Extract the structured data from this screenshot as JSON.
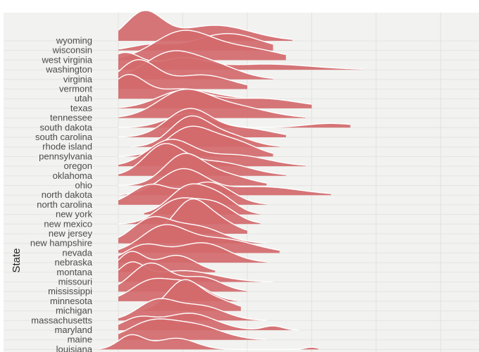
{
  "chart_data": {
    "type": "ridgeline",
    "title": "",
    "xlabel": "",
    "ylabel": "State",
    "grid": true,
    "colors": {
      "fill": "#d26a6c",
      "outline": "#ffffff",
      "panel": "#f2f2f0",
      "grid": "#e4e4e2"
    },
    "x_grid": [
      0,
      1,
      2,
      3,
      4,
      5
    ],
    "x_range": [
      -0.3,
      5.5
    ],
    "categories": [
      "wyoming",
      "wisconsin",
      "west virginia",
      "washington",
      "virginia",
      "vermont",
      "utah",
      "texas",
      "tennessee",
      "south dakota",
      "south carolina",
      "rhode island",
      "pennsylvania",
      "oregon",
      "oklahoma",
      "ohio",
      "north dakota",
      "north carolina",
      "new york",
      "new mexico",
      "new jersey",
      "new hampshire",
      "nevada",
      "nebraska",
      "montana",
      "missouri",
      "mississippi",
      "minnesota",
      "michigan",
      "massachusetts",
      "maryland",
      "maine",
      "louisiana"
    ],
    "series": [
      {
        "name": "wyoming",
        "peaks": [
          [
            0.4,
            0.28,
            1.0
          ],
          [
            1.5,
            0.55,
            0.55
          ]
        ],
        "range": [
          0,
          2.7
        ]
      },
      {
        "name": "wisconsin",
        "peaks": [
          [
            0.5,
            0.3,
            0.2
          ],
          [
            1.7,
            0.5,
            0.6
          ]
        ],
        "range": [
          0,
          2.4
        ]
      },
      {
        "name": "west virginia",
        "peaks": [
          [
            1.0,
            0.45,
            1.0
          ],
          [
            2.0,
            0.5,
            0.4
          ]
        ],
        "range": [
          0,
          2.6
        ]
      },
      {
        "name": "washington",
        "peaks": [
          [
            0.1,
            0.25,
            0.6
          ],
          [
            1.0,
            0.35,
            0.4
          ],
          [
            2.3,
            0.7,
            0.2
          ]
        ],
        "range": [
          0,
          3.8
        ]
      },
      {
        "name": "virginia",
        "peaks": [
          [
            0.8,
            0.4,
            0.9
          ],
          [
            1.5,
            0.4,
            0.45
          ]
        ],
        "range": [
          0,
          2.4
        ]
      },
      {
        "name": "vermont",
        "peaks": [
          [
            0.3,
            0.3,
            1.0
          ],
          [
            1.3,
            0.45,
            0.5
          ]
        ],
        "range": [
          0,
          2.0
        ]
      },
      {
        "name": "utah",
        "peaks": [
          [
            0.15,
            0.25,
            0.8
          ],
          [
            1.0,
            0.45,
            0.35
          ]
        ],
        "range": [
          0,
          1.9
        ]
      },
      {
        "name": "texas",
        "peaks": [
          [
            1.0,
            0.4,
            0.6
          ],
          [
            2.2,
            0.6,
            0.35
          ]
        ],
        "range": [
          0,
          3.0
        ]
      },
      {
        "name": "tennessee",
        "peaks": [
          [
            1.0,
            0.4,
            0.9
          ],
          [
            1.8,
            0.5,
            0.4
          ]
        ],
        "range": [
          0,
          2.9
        ]
      },
      {
        "name": "south dakota",
        "peaks": [
          [
            1.1,
            0.35,
            0.5
          ],
          [
            3.3,
            0.4,
            0.15
          ]
        ],
        "range": [
          0,
          3.6
        ]
      },
      {
        "name": "south carolina",
        "peaks": [
          [
            1.1,
            0.35,
            1.0
          ],
          [
            2.0,
            0.4,
            0.3
          ]
        ],
        "range": [
          0,
          2.6
        ]
      },
      {
        "name": "rhode island",
        "peaks": [
          [
            1.1,
            0.3,
            1.0
          ],
          [
            1.7,
            0.35,
            0.4
          ]
        ],
        "range": [
          0.2,
          2.5
        ]
      },
      {
        "name": "pennsylvania",
        "peaks": [
          [
            1.1,
            0.35,
            1.0
          ],
          [
            1.8,
            0.35,
            0.5
          ]
        ],
        "range": [
          0,
          2.4
        ]
      },
      {
        "name": "oregon",
        "peaks": [
          [
            0.8,
            0.35,
            0.9
          ],
          [
            1.8,
            0.5,
            0.4
          ]
        ],
        "range": [
          0,
          2.9
        ]
      },
      {
        "name": "oklahoma",
        "peaks": [
          [
            0.7,
            0.3,
            1.0
          ],
          [
            1.5,
            0.5,
            0.5
          ]
        ],
        "range": [
          0,
          2.6
        ]
      },
      {
        "name": "ohio",
        "peaks": [
          [
            1.0,
            0.3,
            1.0
          ],
          [
            1.6,
            0.4,
            0.4
          ]
        ],
        "range": [
          0,
          2.3
        ]
      },
      {
        "name": "north dakota",
        "peaks": [
          [
            1.0,
            0.35,
            0.9
          ],
          [
            2.2,
            0.6,
            0.3
          ]
        ],
        "range": [
          0,
          3.3
        ]
      },
      {
        "name": "north carolina",
        "peaks": [
          [
            0.5,
            0.3,
            0.7
          ],
          [
            1.4,
            0.35,
            0.8
          ]
        ],
        "range": [
          0,
          2.3
        ]
      },
      {
        "name": "new york",
        "peaks": [
          [
            1.1,
            0.3,
            1.0
          ],
          [
            1.6,
            0.25,
            0.5
          ]
        ],
        "range": [
          0.4,
          2.2
        ]
      },
      {
        "name": "new mexico",
        "peaks": [
          [
            0.9,
            0.3,
            0.8
          ],
          [
            1.5,
            0.3,
            0.7
          ]
        ],
        "range": [
          0,
          2.2
        ]
      },
      {
        "name": "new jersey",
        "peaks": [
          [
            1.1,
            0.25,
            1.0
          ],
          [
            1.5,
            0.3,
            0.5
          ]
        ],
        "range": [
          0.5,
          2.0
        ]
      },
      {
        "name": "new hampshire",
        "peaks": [
          [
            0.5,
            0.3,
            0.8
          ],
          [
            1.2,
            0.4,
            0.6
          ]
        ],
        "range": [
          0,
          2.3
        ]
      },
      {
        "name": "nevada",
        "peaks": [
          [
            0.7,
            0.35,
            0.9
          ],
          [
            1.6,
            0.5,
            0.5
          ]
        ],
        "range": [
          0,
          2.5
        ]
      },
      {
        "name": "nebraska",
        "peaks": [
          [
            0.4,
            0.3,
            0.6
          ],
          [
            1.3,
            0.4,
            0.7
          ]
        ],
        "range": [
          0,
          2.3
        ]
      },
      {
        "name": "montana",
        "peaks": [
          [
            0.2,
            0.2,
            0.7
          ],
          [
            0.9,
            0.3,
            0.6
          ]
        ],
        "range": [
          0,
          1.5
        ]
      },
      {
        "name": "missouri",
        "peaks": [
          [
            0.2,
            0.2,
            0.6
          ],
          [
            1.0,
            0.5,
            0.4
          ]
        ],
        "range": [
          0,
          2.4
        ]
      },
      {
        "name": "mississippi",
        "peaks": [
          [
            0.5,
            0.3,
            1.0
          ],
          [
            1.3,
            0.3,
            0.5
          ]
        ],
        "range": [
          0,
          2.0
        ]
      },
      {
        "name": "minnesota",
        "peaks": [
          [
            0.5,
            0.3,
            0.7
          ],
          [
            1.1,
            0.3,
            0.6
          ]
        ],
        "range": [
          0,
          1.9
        ]
      },
      {
        "name": "michigan",
        "peaks": [
          [
            1.0,
            0.25,
            1.0
          ],
          [
            1.5,
            0.3,
            0.4
          ]
        ],
        "range": [
          0.3,
          1.9
        ]
      },
      {
        "name": "massachusetts",
        "peaks": [
          [
            0.6,
            0.3,
            0.7
          ],
          [
            1.3,
            0.35,
            0.5
          ]
        ],
        "range": [
          0,
          2.3
        ]
      },
      {
        "name": "maryland",
        "peaks": [
          [
            0.3,
            0.25,
            0.4
          ],
          [
            1.1,
            0.4,
            0.6
          ],
          [
            2.4,
            0.15,
            0.15
          ]
        ],
        "range": [
          0,
          2.8
        ]
      },
      {
        "name": "maine",
        "peaks": [
          [
            0.5,
            0.35,
            0.6
          ],
          [
            1.2,
            0.4,
            0.5
          ]
        ],
        "range": [
          0,
          2.3
        ]
      },
      {
        "name": "louisiana",
        "peaks": [
          [
            0.2,
            0.2,
            0.5
          ],
          [
            0.9,
            0.3,
            0.4
          ],
          [
            3.0,
            0.1,
            0.08
          ]
        ],
        "range": [
          -0.3,
          3.1
        ]
      }
    ]
  }
}
